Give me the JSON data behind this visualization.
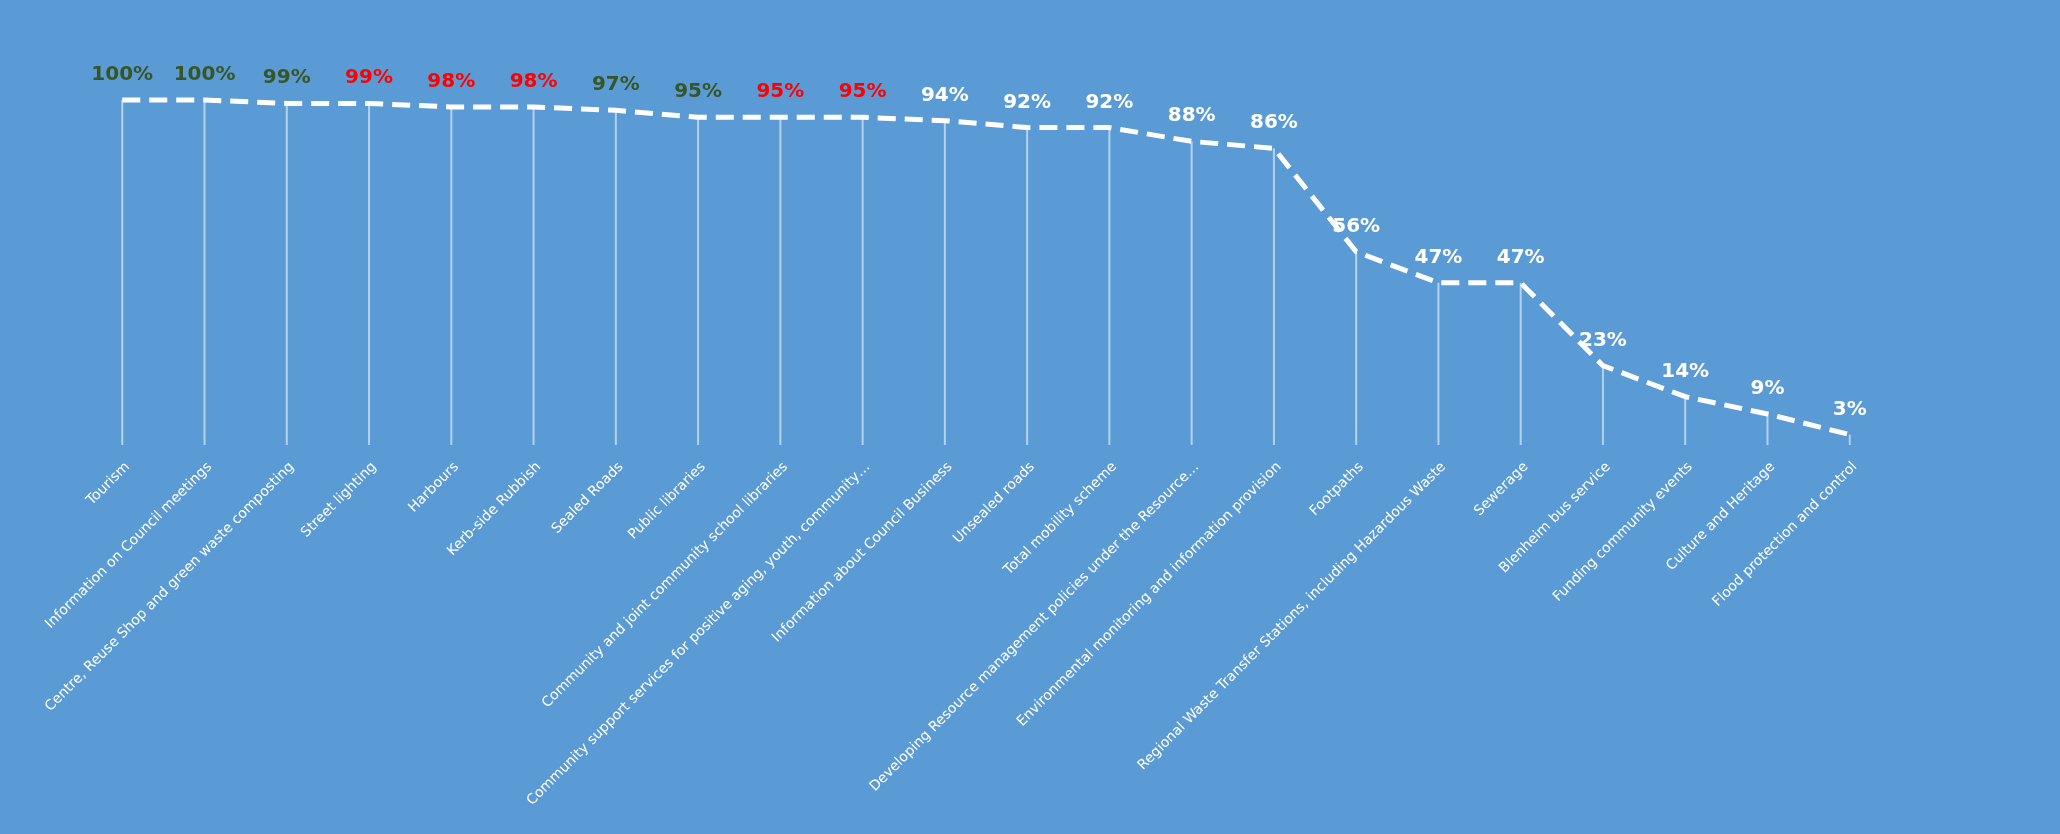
{
  "chart_data": {
    "type": "line",
    "categories": [
      "Tourism",
      "Information on Council meetings",
      "Centre, Reuse Shop and green waste composting",
      "Street lighting",
      "Harbours",
      "Kerb-side Rubbish",
      "Sealed Roads",
      "Public libraries",
      "Community and joint community school libraries",
      "Community support services for positive aging, youth, community…",
      "Information about Council Business",
      "Unsealed roads",
      "Total mobility scheme",
      "Developing Resource management policies under the Resource…",
      "Environmental monitoring and information provision",
      "Footpaths",
      "Regional Waste Transfer Stations, including Hazardous Waste",
      "Sewerage",
      "Blenheim bus service",
      "Funding community events",
      "Culture and Heritage",
      "Flood protection and control"
    ],
    "series": [
      {
        "color": "#ffffff",
        "values": [
          100,
          100,
          99,
          99,
          98,
          98,
          97,
          95,
          95,
          95,
          94,
          92,
          92,
          88,
          86,
          56,
          47,
          47,
          23,
          14,
          9,
          3
        ],
        "value_labels": [
          "100%",
          "100%",
          "99%",
          "99%",
          "98%",
          "98%",
          "97%",
          "95%",
          "95%",
          "95%",
          "94%",
          "92%",
          "92%",
          "88%",
          "86%",
          "56%",
          "47%",
          "47%",
          "23%",
          "14%",
          "9%",
          "3%"
        ],
        "colors": [
          "#375623",
          "#375623",
          "#375623",
          "#ff0000",
          "#ff0000",
          "#ff0000",
          "#375623",
          "#375623",
          "#ff0000",
          "#ff0000",
          "#ffffff",
          "#ffffff",
          "#ffffff",
          "#ffffff",
          "#ffffff",
          "#ffffff",
          "#ffffff",
          "#ffffff",
          "#ffffff",
          "#ffffff",
          "#ffffff",
          "#ffffff"
        ]
      }
    ],
    "line_style": "dashed",
    "marker": "none",
    "grid": "x"
  }
}
